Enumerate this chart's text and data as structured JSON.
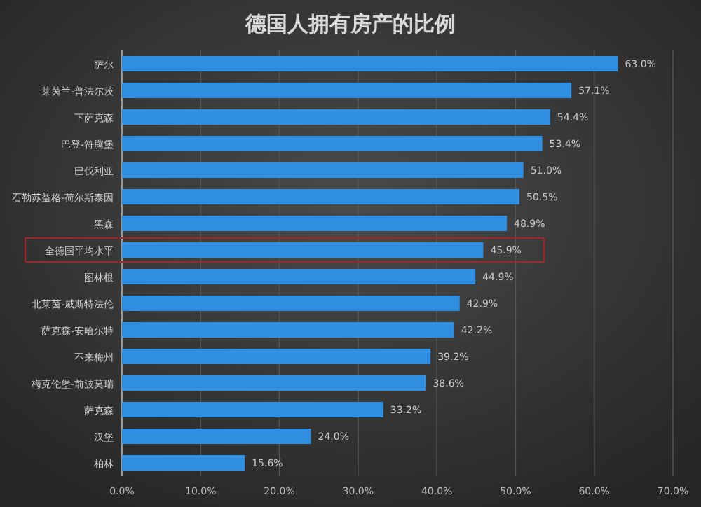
{
  "chart_data": {
    "type": "bar",
    "orientation": "horizontal",
    "title": "德国人拥有房产的比例",
    "categories": [
      "萨尔",
      "莱茵兰-普法尔茨",
      "下萨克森",
      "巴登-符腾堡",
      "巴伐利亚",
      "石勒苏益格-荷尔斯泰因",
      "黑森",
      "全德国平均水平",
      "图林根",
      "北莱茵-威斯特法伦",
      "萨克森-安哈尔特",
      "不来梅州",
      "梅克伦堡-前波莫瑞",
      "萨克森",
      "汉堡",
      "柏林"
    ],
    "values": [
      63.0,
      57.1,
      54.4,
      53.4,
      51.0,
      50.5,
      48.9,
      45.9,
      44.9,
      42.9,
      42.2,
      39.2,
      38.6,
      33.2,
      24.0,
      15.6
    ],
    "value_labels": [
      "63.0%",
      "57.1%",
      "54.4%",
      "53.4%",
      "51.0%",
      "50.5%",
      "48.9%",
      "45.9%",
      "44.9%",
      "42.9%",
      "42.2%",
      "39.2%",
      "38.6%",
      "33.2%",
      "24.0%",
      "15.6%"
    ],
    "color": "#2f8ee0",
    "xlim": [
      0,
      70
    ],
    "xticks": [
      {
        "value": 0,
        "label": "0.0%"
      },
      {
        "value": 10,
        "label": "10.0%"
      },
      {
        "value": 20,
        "label": "20.0%"
      },
      {
        "value": 30,
        "label": "30.0%"
      },
      {
        "value": 40,
        "label": "40.0%"
      },
      {
        "value": 50,
        "label": "50.0%"
      },
      {
        "value": 60,
        "label": "60.0%"
      },
      {
        "value": 70,
        "label": "70.0%"
      }
    ],
    "grid": "x"
  }
}
